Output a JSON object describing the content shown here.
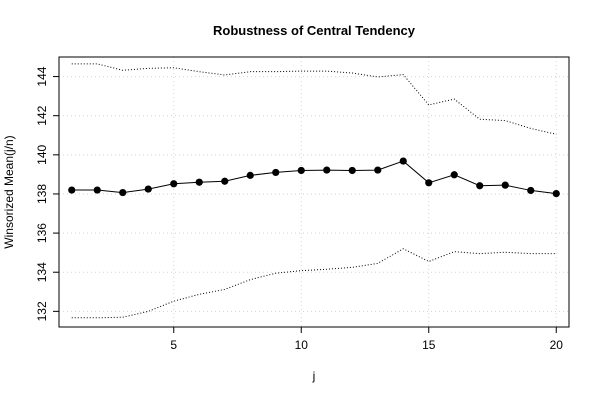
{
  "chart_data": {
    "type": "line",
    "title": "Robustness of Central Tendency",
    "xlabel": "j",
    "ylabel": "Winsorized Mean(j/n)",
    "xlim": [
      0.5,
      20.5
    ],
    "ylim": [
      131.2,
      145.0
    ],
    "x_ticks": [
      5,
      10,
      15,
      20
    ],
    "y_ticks": [
      132,
      134,
      136,
      138,
      140,
      142,
      144
    ],
    "grid": true,
    "x": [
      1,
      2,
      3,
      4,
      5,
      6,
      7,
      8,
      9,
      10,
      11,
      12,
      13,
      14,
      15,
      16,
      17,
      18,
      19,
      20
    ],
    "series": [
      {
        "role": "estimate",
        "style": "points-and-lines",
        "values": [
          138.2,
          138.2,
          138.07,
          138.25,
          138.52,
          138.6,
          138.65,
          138.95,
          139.1,
          139.2,
          139.22,
          139.2,
          139.22,
          139.68,
          138.57,
          138.98,
          138.42,
          138.45,
          138.18,
          138.02
        ]
      },
      {
        "role": "upper-bound",
        "style": "dotted",
        "values": [
          144.65,
          144.65,
          144.32,
          144.42,
          144.45,
          144.25,
          144.08,
          144.25,
          144.25,
          144.28,
          144.28,
          144.18,
          143.98,
          144.1,
          142.55,
          142.85,
          141.82,
          141.75,
          141.35,
          141.05
        ]
      },
      {
        "role": "lower-bound",
        "style": "dotted",
        "values": [
          131.67,
          131.67,
          131.7,
          132.0,
          132.52,
          132.87,
          133.12,
          133.62,
          133.95,
          134.08,
          134.15,
          134.25,
          134.45,
          135.2,
          134.55,
          135.05,
          134.95,
          135.02,
          134.95,
          134.95
        ]
      }
    ]
  }
}
